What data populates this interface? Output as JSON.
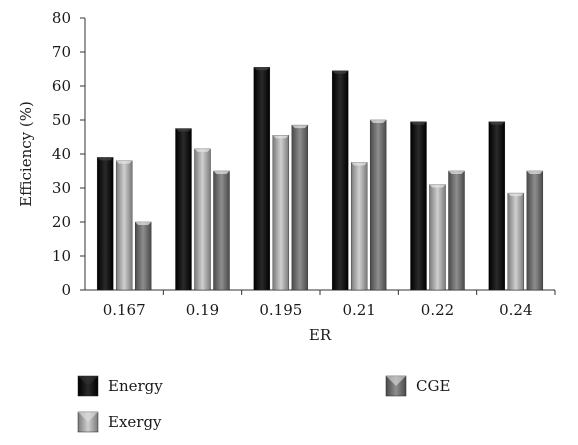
{
  "chart_data": {
    "type": "bar",
    "title": "",
    "xlabel": "ER",
    "ylabel": "Efficiency (%)",
    "ylim": [
      0,
      80
    ],
    "yticks": [
      0,
      10,
      20,
      30,
      40,
      50,
      60,
      70,
      80
    ],
    "categories": [
      "0.167",
      "0.19",
      "0.195",
      "0.21",
      "0.22",
      "0.24"
    ],
    "series": [
      {
        "name": "Energy",
        "values": [
          39,
          47.5,
          65.5,
          64.5,
          49.5,
          49.5
        ],
        "color": "#111111"
      },
      {
        "name": "Exergy",
        "values": [
          38,
          41.5,
          45.5,
          37.5,
          31,
          28.5
        ],
        "color": "#9a9a9a"
      },
      {
        "name": "CGE",
        "values": [
          20,
          35,
          48.5,
          50,
          35,
          35
        ],
        "color": "#6e6e6e"
      }
    ],
    "grid": false,
    "legend_position": "bottom"
  }
}
